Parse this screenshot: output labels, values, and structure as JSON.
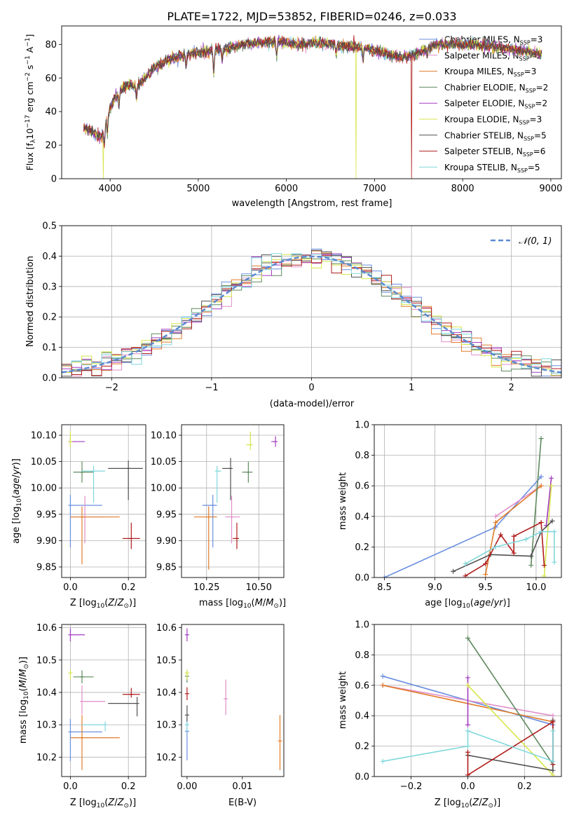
{
  "title": "PLATE=1722, MJD=53852, FIBERID=0246, z=0.033",
  "series": [
    {
      "name": "Chabrier MILES",
      "nssp": "3",
      "color": "#6a8fe0"
    },
    {
      "name": "Salpeter MILES",
      "nssp": "2",
      "color": "#e08ec8"
    },
    {
      "name": "Kroupa MILES",
      "nssp": "3",
      "color": "#e07c2a"
    },
    {
      "name": "Chabrier ELODIE",
      "nssp": "2",
      "color": "#5f8a5f"
    },
    {
      "name": "Salpeter ELODIE",
      "nssp": "2",
      "color": "#a23cc0"
    },
    {
      "name": "Kroupa ELODIE",
      "nssp": "3",
      "color": "#d7e64a"
    },
    {
      "name": "Chabrier STELIB",
      "nssp": "5",
      "color": "#505050"
    },
    {
      "name": "Salpeter STELIB",
      "nssp": "6",
      "color": "#b01c1c"
    },
    {
      "name": "Kroupa STELIB",
      "nssp": "5",
      "color": "#80d8dc"
    }
  ],
  "chart_data": [
    {
      "id": "spectrum",
      "type": "line",
      "title": "PLATE=1722, MJD=53852, FIBERID=0246, z=0.033",
      "xlabel": "wavelength [Angstrom, rest frame]",
      "ylabel": "Flux [f_λ 10^-17 erg cm^-2 s^-1 A^-1]",
      "xlim": [
        3450,
        9120
      ],
      "ylim": [
        0,
        91
      ],
      "xticks": [
        "4000",
        "5000",
        "6000",
        "7000",
        "8000",
        "9000"
      ],
      "yticks": [
        "0",
        "20",
        "40",
        "60",
        "80"
      ],
      "grid": false,
      "legend": "right",
      "continuum": {
        "x": [
          3700,
          3800,
          3900,
          4000,
          4100,
          4200,
          4300,
          4500,
          4700,
          4900,
          5100,
          5300,
          5500,
          5700,
          5900,
          6100,
          6300,
          6500,
          6700,
          6900,
          7100,
          7300,
          7500,
          7700,
          8000,
          8300,
          8600,
          8900
        ],
        "y": [
          30,
          28,
          24,
          42,
          52,
          56,
          55,
          66,
          72,
          74,
          76,
          77,
          80,
          81,
          82,
          80,
          81,
          80,
          79,
          78,
          75,
          72,
          75,
          80,
          80,
          79,
          77,
          74
        ]
      },
      "dropouts": [
        {
          "series": "Kroupa ELODIE",
          "x": 3920
        },
        {
          "series": "Kroupa ELODIE",
          "x": 6790
        },
        {
          "series": "Salpeter STELIB",
          "x": 7420
        }
      ]
    },
    {
      "id": "residuals",
      "type": "step",
      "xlabel": "(data-model)/error",
      "ylabel": "Normed distribution",
      "xlim": [
        -2.5,
        2.5
      ],
      "ylim": [
        0,
        0.5
      ],
      "xticks": [
        "−2",
        "−1",
        "0",
        "1",
        "2"
      ],
      "yticks": [
        "0.0",
        "0.1",
        "0.2",
        "0.3",
        "0.4",
        "0.5"
      ],
      "grid": true,
      "legend": "top-right",
      "legend_label": "N(0, 1)",
      "bin_width": 0.1,
      "reference_color": "#5b8ad0"
    },
    {
      "id": "age-vs-Z",
      "type": "scatter",
      "xlabel": "Z [log10(Z/Z⊙)]",
      "ylabel": "age [log10(age/yr)]",
      "xlim": [
        -0.03,
        0.26
      ],
      "ylim": [
        9.83,
        10.12
      ],
      "xticks": [
        "0.0",
        "0.2"
      ],
      "yticks": [
        "9.85",
        "9.90",
        "9.95",
        "10.00",
        "10.05",
        "10.10"
      ],
      "grid": true,
      "points": [
        {
          "series": "Chabrier MILES",
          "x": 0.0,
          "y": 9.967,
          "xerr": [
            0.0,
            0.11
          ],
          "yerr": [
            0.08,
            0.02
          ]
        },
        {
          "series": "Salpeter MILES",
          "x": 0.05,
          "y": 9.945,
          "xerr": [
            0.05,
            0.07
          ],
          "yerr": [
            0.05,
            0.04
          ]
        },
        {
          "series": "Kroupa MILES",
          "x": 0.04,
          "y": 9.945,
          "xerr": [
            0.04,
            0.13
          ],
          "yerr": [
            0.09,
            0.02
          ]
        },
        {
          "series": "Chabrier ELODIE",
          "x": 0.04,
          "y": 10.03,
          "xerr": [
            0.03,
            0.04
          ],
          "yerr": [
            0.02,
            0.02
          ]
        },
        {
          "series": "Salpeter ELODIE",
          "x": 0.0,
          "y": 10.088,
          "xerr": [
            0.0,
            0.05
          ],
          "yerr": [
            0.008,
            0.008
          ]
        },
        {
          "series": "Kroupa ELODIE",
          "x": 0.0,
          "y": 10.088,
          "xerr": [
            0.0,
            0.0
          ],
          "yerr": [
            0.01,
            0.02
          ]
        },
        {
          "series": "Chabrier STELIB",
          "x": 0.2,
          "y": 10.037,
          "xerr": [
            0.07,
            0.05
          ],
          "yerr": [
            0.06,
            0.015
          ]
        },
        {
          "series": "Salpeter STELIB",
          "x": 0.21,
          "y": 9.904,
          "xerr": [
            0.03,
            0.03
          ],
          "yerr": [
            0.02,
            0.03
          ]
        },
        {
          "series": "Kroupa STELIB",
          "x": 0.08,
          "y": 10.032,
          "xerr": [
            0.04,
            0.04
          ],
          "yerr": [
            0.06,
            0.01
          ]
        }
      ]
    },
    {
      "id": "age-vs-mass",
      "type": "scatter",
      "xlabel": "mass [log10(M/M⊙)]",
      "ylabel": "",
      "xlim": [
        10.13,
        10.62
      ],
      "ylim": [
        9.83,
        10.12
      ],
      "xticks": [
        "10.25",
        "10.50"
      ],
      "yticks": [
        "9.85",
        "9.90",
        "9.95",
        "10.00",
        "10.05",
        "10.10"
      ],
      "grid": true,
      "points": [
        {
          "series": "Chabrier MILES",
          "x": 10.28,
          "y": 9.967,
          "xerr": [
            0.05,
            0.02
          ],
          "yerr": [
            0.08,
            0.02
          ]
        },
        {
          "series": "Salpeter MILES",
          "x": 10.37,
          "y": 9.945,
          "xerr": [
            0.03,
            0.04
          ],
          "yerr": [
            0.05,
            0.04
          ]
        },
        {
          "series": "Kroupa MILES",
          "x": 10.26,
          "y": 9.945,
          "xerr": [
            0.07,
            0.04
          ],
          "yerr": [
            0.1,
            0.02
          ]
        },
        {
          "series": "Chabrier ELODIE",
          "x": 10.45,
          "y": 10.03,
          "xerr": [
            0.03,
            0.02
          ],
          "yerr": [
            0.02,
            0.02
          ]
        },
        {
          "series": "Salpeter ELODIE",
          "x": 10.58,
          "y": 10.088,
          "xerr": [
            0.02,
            0.0
          ],
          "yerr": [
            0.01,
            0.01
          ]
        },
        {
          "series": "Kroupa ELODIE",
          "x": 10.46,
          "y": 10.082,
          "xerr": [
            0.02,
            0.01
          ],
          "yerr": [
            0.01,
            0.025
          ]
        },
        {
          "series": "Chabrier STELIB",
          "x": 10.365,
          "y": 10.037,
          "xerr": [
            0.04,
            0.0
          ],
          "yerr": [
            0.06,
            0.02
          ]
        },
        {
          "series": "Salpeter STELIB",
          "x": 10.395,
          "y": 9.904,
          "xerr": [
            0.02,
            0.0
          ],
          "yerr": [
            0.02,
            0.03
          ]
        },
        {
          "series": "Kroupa STELIB",
          "x": 10.3,
          "y": 10.032,
          "xerr": [
            0.0,
            0.02
          ],
          "yerr": [
            0.06,
            0.01
          ]
        }
      ]
    },
    {
      "id": "massweight-vs-age",
      "type": "line",
      "xlabel": "age [log10(age/yr)]",
      "ylabel": "mass weight",
      "xlim": [
        8.4,
        10.25
      ],
      "ylim": [
        0,
        1
      ],
      "xticks": [
        "8.5",
        "9.0",
        "9.5",
        "10.0"
      ],
      "yticks": [
        "0.0",
        "0.2",
        "0.4",
        "0.6",
        "0.8",
        "1.0"
      ],
      "grid": true,
      "lines": [
        {
          "series": "Chabrier MILES",
          "x": [
            8.5,
            9.6,
            10.05
          ],
          "y": [
            0.0,
            0.33,
            0.66
          ]
        },
        {
          "series": "Salpeter MILES",
          "x": [
            9.6,
            10.05
          ],
          "y": [
            0.4,
            0.6
          ]
        },
        {
          "series": "Kroupa MILES",
          "x": [
            9.5,
            9.6,
            10.05
          ],
          "y": [
            0.02,
            0.36,
            0.6
          ]
        },
        {
          "series": "Chabrier ELODIE",
          "x": [
            9.95,
            10.05
          ],
          "y": [
            0.08,
            0.91
          ]
        },
        {
          "series": "Salpeter ELODIE",
          "x": [
            10.1,
            10.15
          ],
          "y": [
            0.34,
            0.65
          ]
        },
        {
          "series": "Kroupa ELODIE",
          "x": [
            10.08,
            10.15,
            10.15
          ],
          "y": [
            0.01,
            0.6,
            0.6
          ]
        },
        {
          "series": "Chabrier STELIB",
          "x": [
            9.18,
            9.55,
            9.95,
            10.05,
            10.16
          ],
          "y": [
            0.04,
            0.15,
            0.14,
            0.3,
            0.37
          ]
        },
        {
          "series": "Salpeter STELIB",
          "x": [
            9.3,
            9.5,
            9.65,
            9.78,
            9.78,
            10.05,
            10.08
          ],
          "y": [
            0.01,
            0.09,
            0.28,
            0.16,
            0.27,
            0.36,
            0.08
          ]
        },
        {
          "series": "Kroupa STELIB",
          "x": [
            9.3,
            9.6,
            9.9,
            10.05,
            10.18,
            10.18
          ],
          "y": [
            0.09,
            0.2,
            0.25,
            0.3,
            0.3,
            0.1
          ]
        }
      ]
    },
    {
      "id": "mass-vs-Z",
      "type": "scatter",
      "xlabel": "Z [log10(Z/Z⊙)]",
      "ylabel": "mass [log10(M/M⊙)]",
      "xlim": [
        -0.03,
        0.26
      ],
      "ylim": [
        10.14,
        10.61
      ],
      "xticks": [
        "0.0",
        "0.2"
      ],
      "yticks": [
        "10.2",
        "10.3",
        "10.4",
        "10.5",
        "10.6"
      ],
      "grid": true,
      "points": [
        {
          "series": "Chabrier MILES",
          "x": 0.0,
          "y": 10.278,
          "xerr": [
            0.0,
            0.11
          ],
          "yerr": [
            0.09,
            0.04
          ]
        },
        {
          "series": "Salpeter MILES",
          "x": 0.04,
          "y": 10.372,
          "xerr": [
            0.0,
            0.08
          ],
          "yerr": [
            0.04,
            0.05
          ]
        },
        {
          "series": "Kroupa MILES",
          "x": 0.04,
          "y": 10.26,
          "xerr": [
            0.04,
            0.13
          ],
          "yerr": [
            0.1,
            0.07
          ]
        },
        {
          "series": "Chabrier ELODIE",
          "x": 0.04,
          "y": 10.448,
          "xerr": [
            0.03,
            0.04
          ],
          "yerr": [
            0.02,
            0.02
          ]
        },
        {
          "series": "Salpeter ELODIE",
          "x": 0.0,
          "y": 10.578,
          "xerr": [
            0.0,
            0.05
          ],
          "yerr": [
            0.02,
            0.02
          ]
        },
        {
          "series": "Kroupa ELODIE",
          "x": 0.0,
          "y": 10.46,
          "xerr": [
            0.0,
            0.0
          ],
          "yerr": [
            0.02,
            0.01
          ]
        },
        {
          "series": "Chabrier STELIB",
          "x": 0.23,
          "y": 10.366,
          "xerr": [
            0.1,
            0.0
          ],
          "yerr": [
            0.04,
            0.02
          ]
        },
        {
          "series": "Salpeter STELIB",
          "x": 0.21,
          "y": 10.394,
          "xerr": [
            0.03,
            0.03
          ],
          "yerr": [
            0.01,
            0.02
          ]
        },
        {
          "series": "Kroupa STELIB",
          "x": 0.12,
          "y": 10.3,
          "xerr": [
            0.08,
            0.0
          ],
          "yerr": [
            0.02,
            0.01
          ]
        }
      ]
    },
    {
      "id": "mass-vs-ebv",
      "type": "scatter",
      "xlabel": "E(B-V)",
      "ylabel": "",
      "xlim": [
        -0.001,
        0.0175
      ],
      "ylim": [
        10.14,
        10.61
      ],
      "xticks": [
        "0.00",
        "0.01"
      ],
      "yticks": [
        "10.2",
        "10.3",
        "10.4",
        "10.5",
        "10.6"
      ],
      "grid": false,
      "points": [
        {
          "series": "Chabrier MILES",
          "x": 0.0,
          "y": 10.28,
          "xerr": [
            0,
            0
          ],
          "yerr": [
            0.09,
            0.04
          ]
        },
        {
          "series": "Salpeter MILES",
          "x": 0.007,
          "y": 10.38,
          "xerr": [
            0,
            0
          ],
          "yerr": [
            0.05,
            0.06
          ]
        },
        {
          "series": "Kroupa MILES",
          "x": 0.0168,
          "y": 10.25,
          "xerr": [
            0,
            0
          ],
          "yerr": [
            0.09,
            0.08
          ]
        },
        {
          "series": "Chabrier ELODIE",
          "x": 0.0,
          "y": 10.45,
          "xerr": [
            0,
            0
          ],
          "yerr": [
            0.02,
            0.02
          ]
        },
        {
          "series": "Salpeter ELODIE",
          "x": 0.0,
          "y": 10.578,
          "xerr": [
            0,
            0
          ],
          "yerr": [
            0.02,
            0.02
          ]
        },
        {
          "series": "Kroupa ELODIE",
          "x": 0.0,
          "y": 10.46,
          "xerr": [
            0,
            0
          ],
          "yerr": [
            0.02,
            0.01
          ]
        },
        {
          "series": "Chabrier STELIB",
          "x": 0.0,
          "y": 10.33,
          "xerr": [
            0,
            0
          ],
          "yerr": [
            0.02,
            0.03
          ]
        },
        {
          "series": "Salpeter STELIB",
          "x": 0.0,
          "y": 10.396,
          "xerr": [
            0,
            0
          ],
          "yerr": [
            0.02,
            0.02
          ]
        },
        {
          "series": "Kroupa STELIB",
          "x": 0.0,
          "y": 10.3,
          "xerr": [
            0,
            0
          ],
          "yerr": [
            0.02,
            0.01
          ]
        }
      ]
    },
    {
      "id": "massweight-vs-Z",
      "type": "line",
      "xlabel": "Z [log10(Z/Z⊙)]",
      "ylabel": "mass weight",
      "xlim": [
        -0.33,
        0.33
      ],
      "ylim": [
        0,
        1
      ],
      "xticks": [
        "−0.2",
        "0.0",
        "0.2"
      ],
      "yticks": [
        "0.0",
        "0.2",
        "0.4",
        "0.6",
        "0.8",
        "1.0"
      ],
      "grid": true,
      "lines": [
        {
          "series": "Chabrier MILES",
          "x": [
            -0.3,
            0.3
          ],
          "y": [
            0.66,
            0.34
          ]
        },
        {
          "series": "Salpeter MILES",
          "x": [
            -0.3,
            0.3
          ],
          "y": [
            0.6,
            0.4
          ]
        },
        {
          "series": "Kroupa MILES",
          "x": [
            -0.3,
            0.3
          ],
          "y": [
            0.6,
            0.36
          ]
        },
        {
          "series": "Chabrier ELODIE",
          "x": [
            0.0,
            0.3
          ],
          "y": [
            0.91,
            0.08
          ]
        },
        {
          "series": "Salpeter ELODIE",
          "x": [
            0.0,
            0.0
          ],
          "y": [
            0.65,
            0.34
          ]
        },
        {
          "series": "Kroupa ELODIE",
          "x": [
            0.0,
            0.3
          ],
          "y": [
            0.6,
            0.01
          ]
        },
        {
          "series": "Chabrier STELIB",
          "x": [
            0.0,
            0.3,
            0.3
          ],
          "y": [
            0.14,
            0.04,
            0.37
          ]
        },
        {
          "series": "Salpeter STELIB",
          "x": [
            0.0,
            0.0,
            0.3,
            0.3
          ],
          "y": [
            0.16,
            0.01,
            0.36,
            0.08
          ]
        },
        {
          "series": "Kroupa STELIB",
          "x": [
            -0.3,
            0.0,
            0.0,
            0.3,
            0.3
          ],
          "y": [
            0.1,
            0.2,
            0.3,
            0.1,
            0.3
          ]
        }
      ]
    }
  ]
}
